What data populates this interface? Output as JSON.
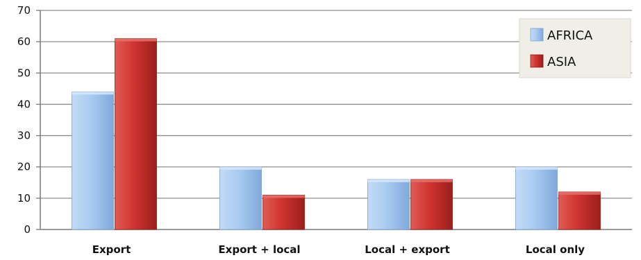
{
  "chart_data": {
    "type": "bar",
    "categories": [
      "Export",
      "Export + local",
      "Local + export",
      "Local only"
    ],
    "series": [
      {
        "name": "AFRICA",
        "values": [
          44,
          20,
          16,
          20
        ],
        "color": "#9dc3ec"
      },
      {
        "name": "ASIA",
        "values": [
          61,
          11,
          16,
          12
        ],
        "color": "#c9302c"
      }
    ],
    "ylim": [
      0,
      70
    ],
    "yticks": [
      0,
      10,
      20,
      30,
      40,
      50,
      60,
      70
    ],
    "grid": true,
    "legend": "top-right",
    "xlabel": "",
    "ylabel": ""
  }
}
